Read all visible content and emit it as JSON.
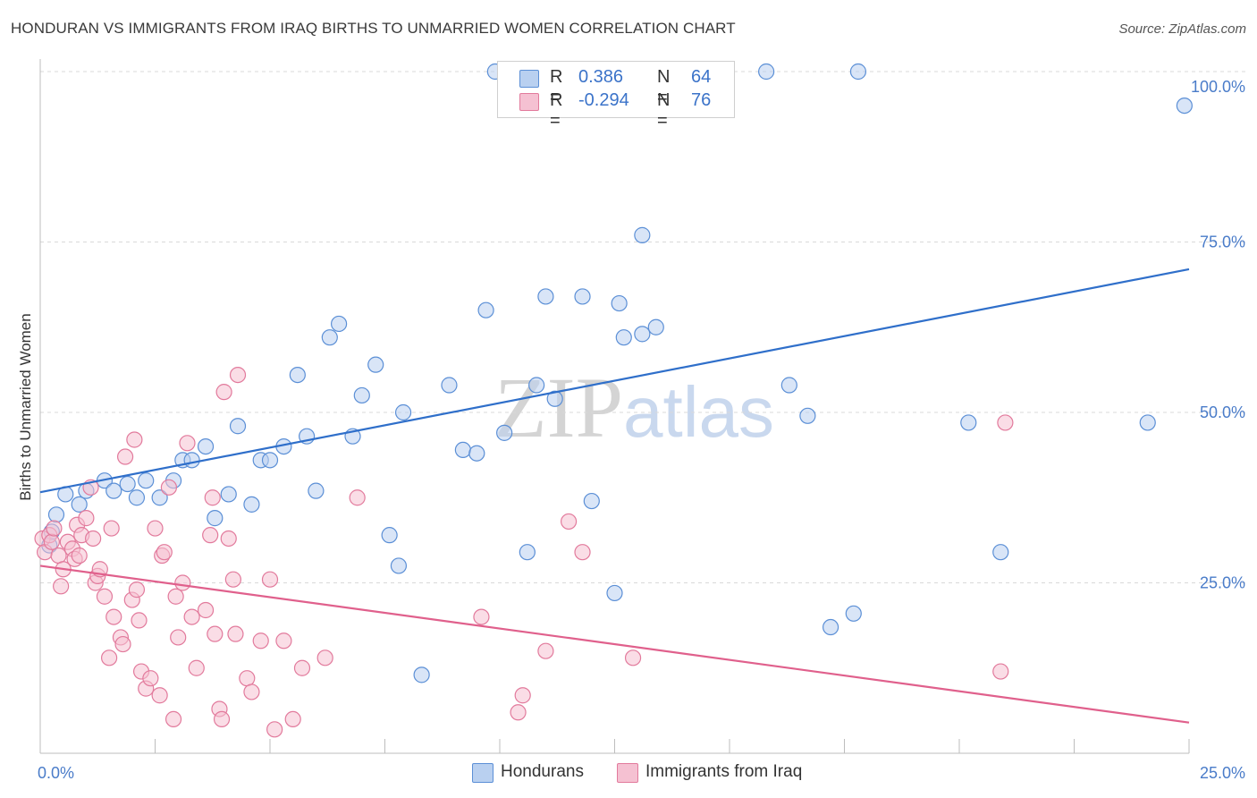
{
  "chart_data": {
    "type": "scatter",
    "title": "HONDURAN VS IMMIGRANTS FROM IRAQ BIRTHS TO UNMARRIED WOMEN CORRELATION CHART",
    "source": "Source: ZipAtlas.com",
    "xlabel": "",
    "ylabel": "Births to Unmarried Women",
    "xlim": [
      0,
      25
    ],
    "ylim": [
      0,
      100
    ],
    "x_ticks": [
      {
        "value": 0,
        "label": "0.0%"
      },
      {
        "value": 25,
        "label": "25.0%"
      }
    ],
    "y_ticks": [
      {
        "value": 25,
        "label": "25.0%"
      },
      {
        "value": 50,
        "label": "50.0%"
      },
      {
        "value": 75,
        "label": "75.0%"
      },
      {
        "value": 100,
        "label": "100.0%"
      }
    ],
    "grid": true,
    "watermark": {
      "part1": "ZIP",
      "part2": "atlas"
    },
    "legend": {
      "position": "top-center",
      "r_label": "R =",
      "n_label": "N =",
      "entries": [
        {
          "name": "Hondurans",
          "r": "0.386",
          "n": "64"
        },
        {
          "name": "Immigrants from Iraq",
          "r": "-0.294",
          "n": "76"
        }
      ]
    },
    "series": [
      {
        "name": "Hondurans",
        "color": "#5b8fd6",
        "fill": "#b9d0f0",
        "trend": {
          "x": [
            0,
            25
          ],
          "y": [
            38.3,
            71
          ]
        },
        "points": [
          [
            0.2,
            30.5
          ],
          [
            0.25,
            32.5
          ],
          [
            0.35,
            35
          ],
          [
            0.55,
            38
          ],
          [
            0.85,
            36.5
          ],
          [
            1.0,
            38.5
          ],
          [
            1.4,
            40
          ],
          [
            1.6,
            38.5
          ],
          [
            1.9,
            39.5
          ],
          [
            2.1,
            37.5
          ],
          [
            2.3,
            40
          ],
          [
            2.6,
            37.5
          ],
          [
            2.9,
            40
          ],
          [
            3.1,
            43
          ],
          [
            3.3,
            43
          ],
          [
            3.6,
            45
          ],
          [
            3.8,
            34.5
          ],
          [
            4.1,
            38
          ],
          [
            4.3,
            48
          ],
          [
            4.6,
            36.5
          ],
          [
            4.8,
            43
          ],
          [
            5.0,
            43
          ],
          [
            5.3,
            45
          ],
          [
            5.6,
            55.5
          ],
          [
            5.8,
            46.5
          ],
          [
            6.0,
            38.5
          ],
          [
            6.3,
            61
          ],
          [
            6.5,
            63
          ],
          [
            6.8,
            46.5
          ],
          [
            7.0,
            52.5
          ],
          [
            7.3,
            57
          ],
          [
            7.6,
            32
          ],
          [
            7.8,
            27.5
          ],
          [
            7.9,
            50
          ],
          [
            8.3,
            11.5
          ],
          [
            8.9,
            54
          ],
          [
            9.2,
            44.5
          ],
          [
            9.5,
            44
          ],
          [
            9.7,
            65
          ],
          [
            9.9,
            100
          ],
          [
            10.1,
            47
          ],
          [
            10.6,
            29.5
          ],
          [
            10.8,
            54
          ],
          [
            11.0,
            67
          ],
          [
            11.2,
            52
          ],
          [
            11.6,
            100
          ],
          [
            11.8,
            67
          ],
          [
            12.0,
            37
          ],
          [
            12.5,
            23.5
          ],
          [
            12.6,
            66
          ],
          [
            12.7,
            61
          ],
          [
            13.1,
            61.5
          ],
          [
            13.4,
            62.5
          ],
          [
            13.1,
            76
          ],
          [
            15.8,
            100
          ],
          [
            16.3,
            54
          ],
          [
            16.7,
            49.5
          ],
          [
            17.2,
            18.5
          ],
          [
            17.7,
            20.5
          ],
          [
            17.8,
            100
          ],
          [
            20.2,
            48.5
          ],
          [
            20.9,
            29.5
          ],
          [
            24.1,
            48.5
          ],
          [
            24.9,
            95
          ]
        ]
      },
      {
        "name": "Immigrants from Iraq",
        "color": "#e27a9c",
        "fill": "#f5c1d2",
        "trend": {
          "x": [
            0,
            25
          ],
          "y": [
            27.5,
            4.5
          ]
        },
        "points": [
          [
            0.05,
            31.5
          ],
          [
            0.1,
            29.5
          ],
          [
            0.2,
            32
          ],
          [
            0.25,
            31
          ],
          [
            0.3,
            33
          ],
          [
            0.4,
            29
          ],
          [
            0.45,
            24.5
          ],
          [
            0.5,
            27
          ],
          [
            0.6,
            31
          ],
          [
            0.7,
            30
          ],
          [
            0.75,
            28.5
          ],
          [
            0.8,
            33.5
          ],
          [
            0.85,
            29
          ],
          [
            0.9,
            32
          ],
          [
            1.0,
            34.5
          ],
          [
            1.1,
            39
          ],
          [
            1.15,
            31.5
          ],
          [
            1.2,
            25
          ],
          [
            1.25,
            26
          ],
          [
            1.3,
            27
          ],
          [
            1.4,
            23
          ],
          [
            1.5,
            14
          ],
          [
            1.55,
            33
          ],
          [
            1.6,
            20
          ],
          [
            1.75,
            17
          ],
          [
            1.8,
            16
          ],
          [
            1.85,
            43.5
          ],
          [
            2.0,
            22.5
          ],
          [
            2.05,
            46
          ],
          [
            2.1,
            24
          ],
          [
            2.15,
            19.5
          ],
          [
            2.2,
            12
          ],
          [
            2.3,
            9.5
          ],
          [
            2.4,
            11
          ],
          [
            2.5,
            33
          ],
          [
            2.6,
            8.5
          ],
          [
            2.65,
            29
          ],
          [
            2.7,
            29.5
          ],
          [
            2.8,
            39
          ],
          [
            2.9,
            5
          ],
          [
            2.95,
            23
          ],
          [
            3.0,
            17
          ],
          [
            3.1,
            25
          ],
          [
            3.2,
            45.5
          ],
          [
            3.3,
            20
          ],
          [
            3.4,
            12.5
          ],
          [
            3.6,
            21
          ],
          [
            3.7,
            32
          ],
          [
            3.75,
            37.5
          ],
          [
            3.8,
            17.5
          ],
          [
            3.9,
            6.5
          ],
          [
            3.95,
            5
          ],
          [
            4.0,
            53
          ],
          [
            4.1,
            31.5
          ],
          [
            4.2,
            25.5
          ],
          [
            4.25,
            17.5
          ],
          [
            4.3,
            55.5
          ],
          [
            4.5,
            11
          ],
          [
            4.6,
            9
          ],
          [
            4.8,
            16.5
          ],
          [
            5.0,
            25.5
          ],
          [
            5.1,
            3.5
          ],
          [
            5.3,
            16.5
          ],
          [
            5.5,
            5
          ],
          [
            5.7,
            12.5
          ],
          [
            6.2,
            14
          ],
          [
            6.9,
            37.5
          ],
          [
            9.6,
            20
          ],
          [
            10.4,
            6
          ],
          [
            10.5,
            8.5
          ],
          [
            11.0,
            15
          ],
          [
            11.5,
            34
          ],
          [
            11.8,
            29.5
          ],
          [
            12.9,
            14
          ],
          [
            20.9,
            12
          ],
          [
            21.0,
            48.5
          ]
        ]
      }
    ]
  }
}
